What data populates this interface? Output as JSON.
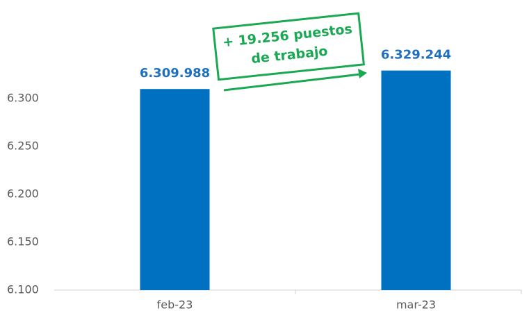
{
  "chart_data": {
    "type": "bar",
    "categories": [
      "feb-23",
      "mar-23"
    ],
    "values": [
      6309.988,
      6329.244
    ],
    "value_labels": [
      "6.309.988",
      "6.329.244"
    ],
    "color": "#0070c0",
    "ylim": [
      6100,
      6400
    ],
    "yticks": [
      {
        "value": 6100,
        "label": "6.100"
      },
      {
        "value": 6150,
        "label": "6.150"
      },
      {
        "value": 6200,
        "label": "6.200"
      },
      {
        "value": 6250,
        "label": "6.250"
      },
      {
        "value": 6300,
        "label": "6.300"
      }
    ],
    "grid": false,
    "annotation": [
      "+ 19.256 puestos",
      "de trabajo"
    ],
    "annotation_color": "#1aa852"
  }
}
